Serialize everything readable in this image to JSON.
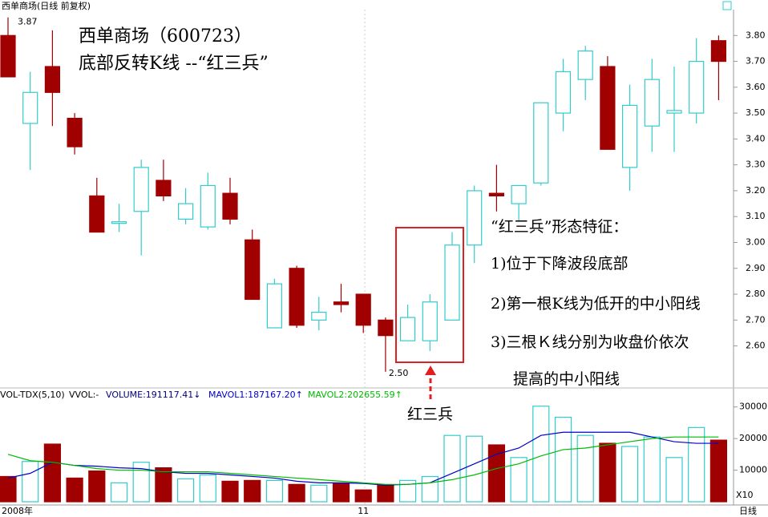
{
  "chart_data": [
    {
      "type": "candlestick",
      "header": "西单商场(日线 前复权)",
      "title": "西单商场（600723）",
      "subtitle": "底部反转K线 --“红三兵”",
      "annotations": [
        "“红三兵”形态特征：",
        "1)位于下降波段底部",
        "2)第一根K线为低开的中小阳线",
        "3)三根Ｋ线分别为收盘价依次",
        "提高的中小阳线",
        "红三兵"
      ],
      "period_label": "日线",
      "categories": [
        "2008年",
        null,
        null,
        null,
        null,
        null,
        null,
        null,
        null,
        null,
        null,
        null,
        null,
        null,
        null,
        null,
        "11",
        null,
        null,
        null,
        null,
        null,
        null,
        null,
        null,
        null,
        null,
        null,
        null,
        null,
        null,
        null,
        null
      ],
      "open": [
        3.8,
        3.46,
        3.68,
        3.48,
        3.18,
        3.08,
        3.12,
        3.24,
        3.09,
        3.06,
        3.19,
        3.01,
        2.67,
        2.9,
        2.7,
        2.77,
        2.8,
        2.7,
        2.62,
        2.62,
        2.7,
        2.99,
        3.19,
        3.15,
        3.23,
        3.5,
        3.63,
        3.68,
        3.29,
        3.45,
        3.5,
        3.5,
        3.78
      ],
      "high": [
        3.87,
        3.66,
        3.82,
        3.5,
        3.25,
        3.15,
        3.32,
        3.32,
        3.21,
        3.27,
        3.25,
        3.05,
        2.86,
        2.91,
        2.79,
        2.84,
        2.8,
        2.71,
        2.76,
        2.8,
        3.04,
        3.22,
        3.3,
        3.22,
        3.54,
        3.71,
        3.76,
        3.72,
        3.61,
        3.71,
        3.68,
        3.79,
        3.8
      ],
      "low": [
        3.64,
        3.28,
        3.45,
        3.34,
        3.04,
        3.04,
        2.95,
        3.16,
        3.07,
        3.05,
        3.07,
        2.78,
        2.67,
        2.67,
        2.66,
        2.73,
        2.65,
        2.5,
        2.62,
        2.58,
        2.7,
        2.92,
        3.12,
        3.08,
        3.22,
        3.43,
        3.55,
        3.36,
        3.2,
        3.35,
        3.35,
        3.46,
        3.55
      ],
      "close": [
        3.64,
        3.58,
        3.58,
        3.37,
        3.04,
        3.08,
        3.29,
        3.18,
        3.15,
        3.22,
        3.09,
        2.78,
        2.84,
        2.68,
        2.73,
        2.76,
        2.68,
        2.64,
        2.71,
        2.77,
        2.99,
        3.2,
        3.18,
        3.22,
        3.54,
        3.66,
        3.74,
        3.36,
        3.53,
        3.63,
        3.51,
        3.7,
        3.7
      ],
      "up_color": "#33cccc",
      "down_color": "#a00000",
      "max_label": 3.87,
      "min_label": {
        "value": 2.5,
        "label": "2.50"
      },
      "ylim": [
        2.45,
        3.9
      ],
      "yticks": [
        {
          "value": 2.6,
          "label": "2.60"
        },
        {
          "value": 2.7,
          "label": "2.70"
        },
        {
          "value": 2.8,
          "label": "2.80"
        },
        {
          "value": 2.9,
          "label": "2.90"
        },
        {
          "value": 3.0,
          "label": "3.00"
        },
        {
          "value": 3.1,
          "label": "3.10"
        },
        {
          "value": 3.2,
          "label": "3.20"
        },
        {
          "value": 3.3,
          "label": "3.30"
        },
        {
          "value": 3.4,
          "label": "3.40"
        },
        {
          "value": 3.5,
          "label": "3.50"
        },
        {
          "value": 3.6,
          "label": "3.60"
        },
        {
          "value": 3.7,
          "label": "3.70"
        },
        {
          "value": 3.8,
          "label": "3.80"
        }
      ]
    },
    {
      "type": "volume",
      "indicator": "VOL-TDX(5,10)",
      "vvol": "VVOL:-",
      "series": [
        {
          "name": "VOLUME:191117.41↓",
          "color": "#000080",
          "values": [
            8000,
            12750,
            18250,
            7500,
            9750,
            6000,
            12500,
            10750,
            7250,
            8500,
            6500,
            6750,
            6750,
            5500,
            5250,
            5750,
            3750,
            5250,
            6750,
            8000,
            21000,
            20750,
            18000,
            14000,
            30250,
            26750,
            21000,
            18500,
            17500,
            20500,
            14000,
            23500,
            19500
          ]
        },
        {
          "name": "MAVOL1:187167.20↑",
          "color": "#0000cc",
          "values": [
            7500,
            9000,
            12500,
            11500,
            11250,
            10750,
            10500,
            9500,
            9000,
            9000,
            8500,
            8000,
            7500,
            6500,
            6000,
            6000,
            5800,
            5300,
            5500,
            6000,
            9000,
            12000,
            15000,
            17000,
            21000,
            22000,
            22000,
            22000,
            22000,
            20500,
            19000,
            18500,
            18500
          ]
        },
        {
          "name": "MAVOL2:202655.59↑",
          "color": "#00bb00",
          "values": [
            15000,
            13000,
            12500,
            11500,
            10500,
            10000,
            10000,
            9500,
            9500,
            9500,
            9000,
            8500,
            8000,
            7500,
            7000,
            6500,
            6000,
            5500,
            5500,
            6000,
            7000,
            8500,
            10500,
            12000,
            14500,
            16500,
            17000,
            18000,
            19000,
            20000,
            20500,
            20500,
            20500
          ]
        }
      ],
      "scale_label": "X10",
      "ylim": [
        0,
        35000
      ],
      "yticks": [
        10000,
        20000,
        30000
      ]
    }
  ]
}
